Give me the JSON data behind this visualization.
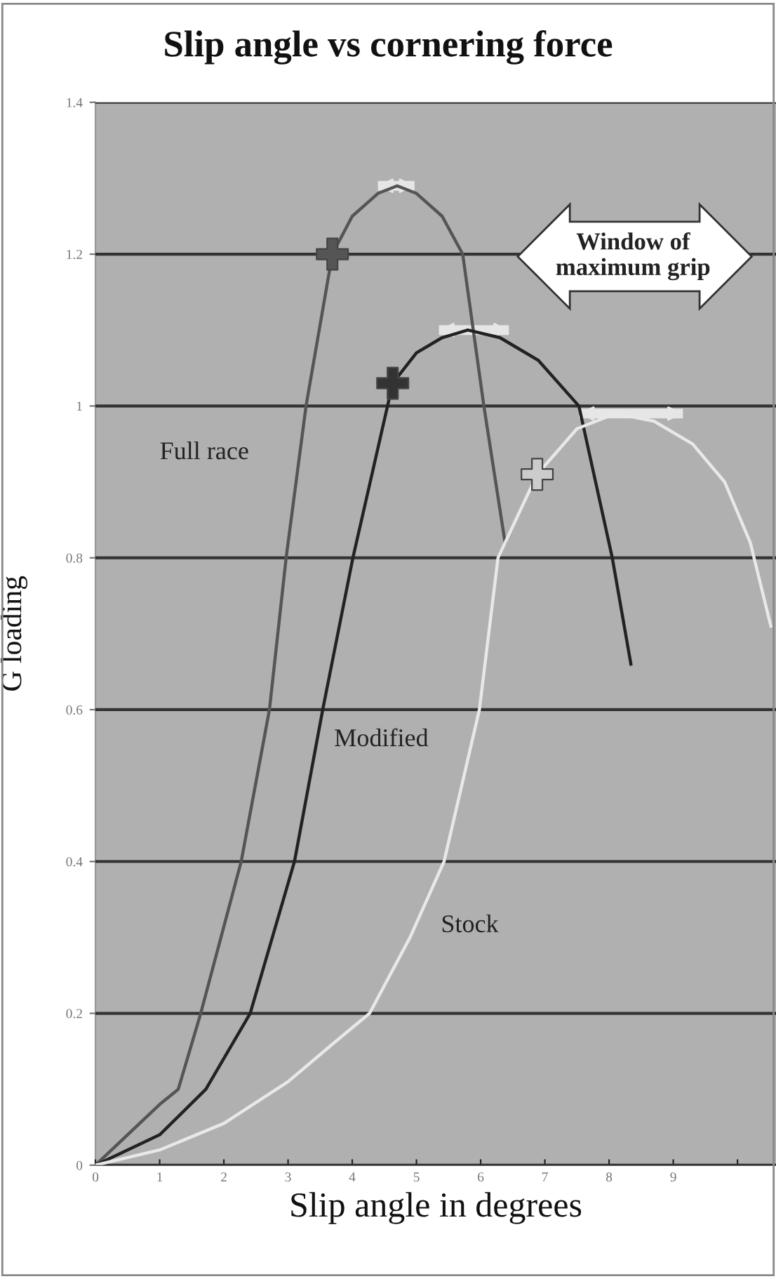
{
  "chart_data": {
    "type": "line",
    "title": "Slip angle vs cornering force",
    "xlabel": "Slip angle in degrees",
    "ylabel": "G loading",
    "xlim": [
      0,
      10.6
    ],
    "ylim": [
      0,
      1.4
    ],
    "xticks": [
      0,
      1,
      2,
      3,
      4,
      5,
      6,
      7,
      8,
      9,
      {
        "value": 10,
        "label": null
      }
    ],
    "yticks": [
      0,
      0.2,
      0.4,
      {
        "value": 0.6,
        "label": "0.6"
      },
      0.8,
      1,
      1.2,
      1.4
    ],
    "grid": "y",
    "marker": "none",
    "line_style": "solid",
    "annotations": [
      "Window of maximum grip"
    ],
    "series": [
      {
        "name": "Full race",
        "color": "#555555",
        "x": [
          0,
          0.5,
          1.0,
          1.29,
          1.64,
          2.27,
          2.71,
          2.97,
          3.28,
          3.69,
          4.0,
          4.4,
          4.7,
          5.0,
          5.4,
          5.72,
          6.05,
          6.38
        ],
        "values": [
          0,
          0.04,
          0.08,
          0.1,
          0.2,
          0.4,
          0.6,
          0.8,
          1.0,
          1.2,
          1.25,
          1.28,
          1.29,
          1.28,
          1.25,
          1.2,
          1.0,
          0.82
        ]
      },
      {
        "name": "Modified",
        "color": "#222222",
        "x": [
          0,
          0.5,
          1.0,
          1.72,
          2.41,
          3.1,
          3.54,
          4.01,
          4.63,
          5.0,
          5.4,
          5.8,
          6.3,
          6.9,
          7.53,
          8.05,
          8.34
        ],
        "values": [
          0,
          0.02,
          0.04,
          0.1,
          0.2,
          0.4,
          0.6,
          0.8,
          1.03,
          1.07,
          1.09,
          1.1,
          1.09,
          1.06,
          1.0,
          0.8,
          0.66
        ]
      },
      {
        "name": "Stock",
        "color": "#e8e8e8",
        "x": [
          0,
          1,
          2,
          3,
          3.7,
          4.27,
          4.9,
          5.43,
          5.98,
          6.27,
          6.88,
          7.5,
          8.1,
          8.7,
          9.3,
          9.8,
          10.2,
          10.52
        ],
        "values": [
          0,
          0.02,
          0.055,
          0.11,
          0.16,
          0.2,
          0.3,
          0.4,
          0.6,
          0.8,
          0.91,
          0.97,
          0.99,
          0.98,
          0.95,
          0.9,
          0.82,
          0.71
        ]
      },
      {
        "type": "scatter",
        "color": "#555555",
        "marker": "cross",
        "x": [
          3.69
        ],
        "values": [
          1.2
        ]
      },
      {
        "type": "scatter",
        "color": "#333333",
        "marker": "cross",
        "x": [
          4.63
        ],
        "values": [
          1.03
        ]
      },
      {
        "type": "scatter",
        "color": "#cccccc",
        "marker": "cross",
        "x": [
          6.88
        ],
        "values": [
          0.91
        ]
      },
      {
        "type": "line",
        "color": "#e6e6e6",
        "x": [
          4.4,
          4.97
        ],
        "values": [
          1.29,
          1.29
        ]
      },
      {
        "type": "line",
        "color": "#e6e6e6",
        "x": [
          5.35,
          6.44
        ],
        "values": [
          1.1,
          1.1
        ]
      },
      {
        "type": "line",
        "color": "#e6e6e6",
        "x": [
          7.53,
          9.15
        ],
        "values": [
          0.99,
          0.99
        ]
      }
    ]
  }
}
